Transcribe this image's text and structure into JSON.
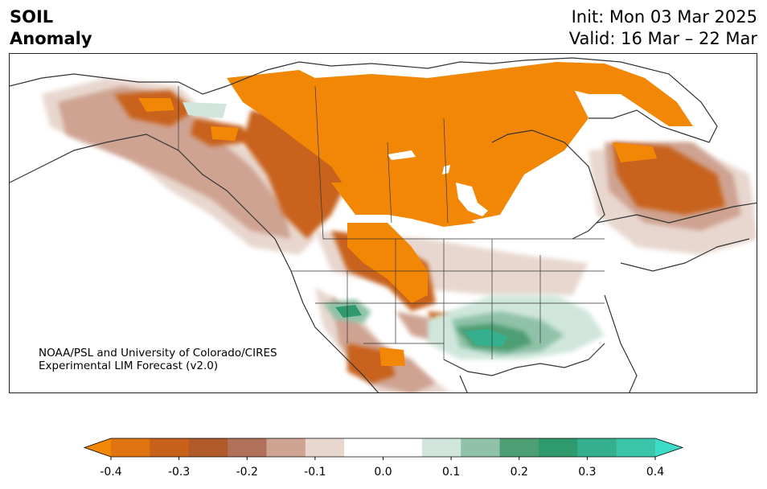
{
  "title": {
    "left_line1": "SOIL",
    "left_line2": "Anomaly",
    "init": "Init: Mon 03 Mar 2025",
    "valid": "Valid: 16 Mar – 22 Mar"
  },
  "credit": {
    "line1": "NOAA/PSL and University of Colorado/CIRES",
    "line2": "Experimental LIM Forecast (v2.0)"
  },
  "colorbar": {
    "colors": [
      "#f28705",
      "#e07410",
      "#c8621a",
      "#b05a2a",
      "#b0705a",
      "#cfa392",
      "#e8d7cf",
      "#ffffff",
      "#ffffff",
      "#d0e6dc",
      "#8fc2a8",
      "#4d9e72",
      "#2e9a6e",
      "#35b08e",
      "#3ac5aa",
      "#3ddcc8"
    ],
    "ticks": [
      "-0.4",
      "-0.3",
      "-0.2",
      "-0.1",
      "0.0",
      "0.1",
      "0.2",
      "0.3",
      "0.4"
    ]
  },
  "map_colors": {
    "dry_strong": "#f28705",
    "dry_mid": "#c8621a",
    "dry_light": "#cfa392",
    "dry_faint": "#e8d7cf",
    "wet_light": "#d0e6dc",
    "wet_mid": "#4d9e72",
    "wet_strong": "#35b08e",
    "coastline": "#333333"
  }
}
